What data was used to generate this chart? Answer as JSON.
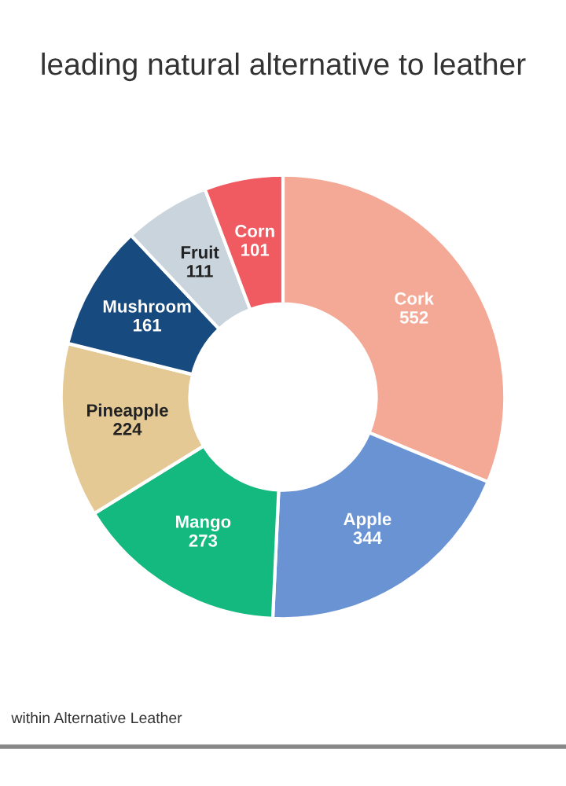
{
  "chart_data": {
    "type": "donut",
    "title": "leading natural alternative to leather",
    "categories": [
      "Cork",
      "Apple",
      "Mango",
      "Pineapple",
      "Mushroom",
      "Fruit",
      "Corn"
    ],
    "values": [
      552,
      344,
      273,
      224,
      161,
      111,
      101
    ],
    "colors": [
      "#f4a896",
      "#6a93d4",
      "#13b97f",
      "#e5c994",
      "#174a7e",
      "#c9d4dc",
      "#ef5b60"
    ],
    "data_labels": true,
    "annotations": [
      "within Alternative Leather"
    ]
  }
}
